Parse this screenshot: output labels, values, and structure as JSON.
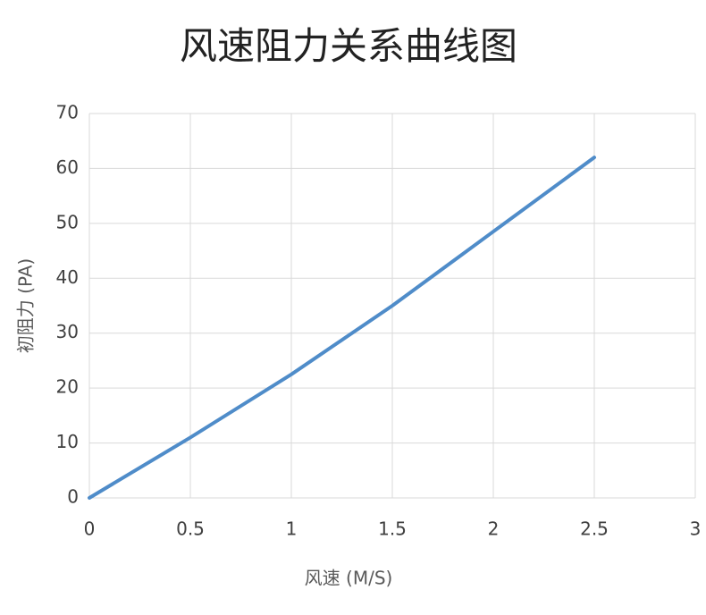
{
  "chart_data": {
    "type": "line",
    "title": "风速阻力关系曲线图",
    "x_label": "风速 (M/S)",
    "y_label": "初阻力 (PA)",
    "x": [
      0,
      0.5,
      1,
      1.5,
      2,
      2.5
    ],
    "series": [
      {
        "name": "初阻力",
        "color": "#4f8cc9",
        "values": [
          0,
          11,
          22.5,
          35,
          48.5,
          62
        ]
      }
    ],
    "xlim": [
      0,
      3
    ],
    "xticks": [
      0,
      0.5,
      1,
      1.5,
      2,
      2.5,
      3
    ],
    "ylim": [
      0,
      70
    ],
    "yticks": [
      0,
      10,
      20,
      30,
      40,
      50,
      60,
      70
    ],
    "grid": true
  }
}
